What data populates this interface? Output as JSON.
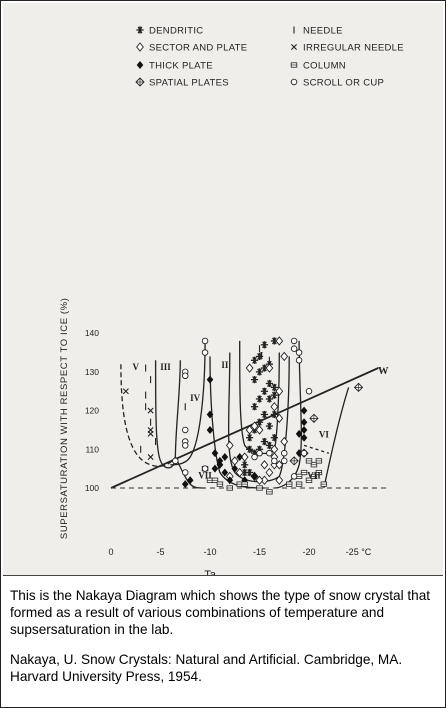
{
  "chart_data": {
    "type": "scatter",
    "xlabel": "Ta",
    "ylabel": "SUPERSATURATION WITH RESPECT TO ICE (%)",
    "xlim": [
      0,
      -25
    ],
    "ylim": [
      100,
      140
    ],
    "xticks": [
      {
        "value": 0,
        "label": "0"
      },
      {
        "value": -5,
        "label": "-5"
      },
      {
        "value": -10,
        "label": "-10"
      },
      {
        "value": -15,
        "label": "-15"
      },
      {
        "value": -20,
        "label": "-20"
      },
      {
        "value": -25,
        "label": "-25 °C"
      }
    ],
    "yticks": [
      100,
      110,
      120,
      130,
      140
    ],
    "grid": false,
    "legend_placement": "top",
    "legend": [
      {
        "symbol": "✱",
        "label": "DENDRITIC"
      },
      {
        "symbol": "I",
        "label": "NEEDLE"
      },
      {
        "symbol": "◇",
        "label": "SECTOR AND PLATE"
      },
      {
        "symbol": "×",
        "label": "IRREGULAR NEEDLE"
      },
      {
        "symbol": "◆",
        "label": "THICK PLATE"
      },
      {
        "symbol": "⊞",
        "label": "COLUMN"
      },
      {
        "symbol": "⊕",
        "label": "SPATIAL PLATES"
      },
      {
        "symbol": "o",
        "label": "SCROLL OR CUP"
      }
    ],
    "region_labels": [
      "I",
      "II",
      "III",
      "IV",
      "V",
      "VI",
      "VII",
      "VII",
      "W"
    ],
    "water_saturation_line": {
      "label": "W",
      "x": [
        0,
        -27
      ],
      "y": [
        100,
        131
      ]
    },
    "series": [
      {
        "symbol": "✱",
        "label": "DENDRITIC",
        "points": [
          [
            -14,
            104
          ],
          [
            -13.5,
            106
          ],
          [
            -14.5,
            109
          ],
          [
            -15,
            110
          ],
          [
            -15.5,
            112
          ],
          [
            -16,
            111
          ],
          [
            -16.5,
            113
          ],
          [
            -14,
            113
          ],
          [
            -14.5,
            115
          ],
          [
            -15,
            117
          ],
          [
            -16,
            116
          ],
          [
            -15.5,
            119
          ],
          [
            -16.5,
            119
          ],
          [
            -14.5,
            121
          ],
          [
            -15,
            123
          ],
          [
            -16,
            123
          ],
          [
            -16.5,
            126
          ],
          [
            -14.5,
            128
          ],
          [
            -15,
            130
          ],
          [
            -15.5,
            131
          ],
          [
            -16,
            127
          ],
          [
            -16.5,
            124
          ],
          [
            -15.5,
            125
          ],
          [
            -16,
            132
          ],
          [
            -15,
            134
          ],
          [
            -16.5,
            138
          ],
          [
            -15.5,
            137
          ],
          [
            -14.5,
            133
          ],
          [
            -14,
            110
          ],
          [
            -13.5,
            104
          ]
        ]
      },
      {
        "symbol": "I",
        "label": "NEEDLE",
        "points": [
          [
            -3.5,
            131
          ],
          [
            -4,
            128
          ],
          [
            -3.5,
            124
          ],
          [
            -4,
            117
          ],
          [
            -4.5,
            112
          ],
          [
            -3,
            110
          ],
          [
            -3.5,
            121
          ],
          [
            -16,
            133
          ],
          [
            -15,
            136
          ],
          [
            -7.5,
            121
          ]
        ]
      },
      {
        "symbol": "◇",
        "label": "SECTOR AND PLATE",
        "points": [
          [
            -12,
            103
          ],
          [
            -13,
            104
          ],
          [
            -14.5,
            103
          ],
          [
            -15.5,
            102
          ],
          [
            -16,
            104
          ],
          [
            -16.5,
            106
          ],
          [
            -17,
            106
          ],
          [
            -12.5,
            107
          ],
          [
            -13.5,
            108
          ],
          [
            -16.5,
            110
          ],
          [
            -17.5,
            112
          ],
          [
            -12,
            111
          ],
          [
            -14,
            115
          ],
          [
            -15,
            115
          ],
          [
            -14.5,
            116
          ],
          [
            -17,
            118
          ],
          [
            -16.5,
            121
          ],
          [
            -17,
            125
          ],
          [
            -16,
            131
          ],
          [
            -17.5,
            134
          ],
          [
            -17,
            138
          ],
          [
            -14,
            131
          ],
          [
            -15,
            102
          ],
          [
            -15.5,
            106
          ],
          [
            -16.5,
            108
          ],
          [
            -17,
            102
          ]
        ]
      },
      {
        "symbol": "×",
        "label": "IRREGULAR NEEDLE",
        "points": [
          [
            -1.5,
            125
          ],
          [
            -4,
            120
          ],
          [
            -4,
            115
          ],
          [
            -4,
            114
          ],
          [
            -4,
            108
          ]
        ]
      },
      {
        "symbol": "◆",
        "label": "THICK PLATE",
        "points": [
          [
            -10,
            128
          ],
          [
            -10,
            119
          ],
          [
            -10,
            115
          ],
          [
            -10.5,
            109
          ],
          [
            -11,
            107
          ],
          [
            -11,
            106
          ],
          [
            -10.5,
            105
          ],
          [
            -11.5,
            104
          ],
          [
            -12,
            102
          ],
          [
            -12.5,
            105
          ],
          [
            -13.5,
            102
          ],
          [
            -14.5,
            103
          ],
          [
            -19,
            109
          ],
          [
            -19.5,
            113
          ],
          [
            -19.5,
            115
          ],
          [
            -19,
            114
          ],
          [
            -19.5,
            120
          ],
          [
            -19.5,
            117
          ],
          [
            -7.5,
            101
          ],
          [
            -8,
            102
          ],
          [
            -11.5,
            108
          ],
          [
            -11,
            106
          ],
          [
            -13,
            108
          ]
        ]
      },
      {
        "symbol": "⊞",
        "label": "COLUMN",
        "points": [
          [
            -9.5,
            105
          ],
          [
            -10,
            102
          ],
          [
            -10.5,
            102
          ],
          [
            -11,
            101
          ],
          [
            -12,
            100
          ],
          [
            -13,
            101
          ],
          [
            -13.5,
            101
          ],
          [
            -15,
            100
          ],
          [
            -16,
            99
          ],
          [
            -18,
            101
          ],
          [
            -19,
            101
          ],
          [
            -20,
            102
          ],
          [
            -19.5,
            104
          ],
          [
            -20.5,
            103
          ],
          [
            -21,
            104
          ],
          [
            -20.5,
            106
          ],
          [
            -21,
            107
          ],
          [
            -20,
            107
          ],
          [
            -21.5,
            101
          ],
          [
            -19,
            103
          ]
        ]
      },
      {
        "symbol": "⊕",
        "label": "SPATIAL PLATES",
        "points": [
          [
            -20.5,
            118
          ],
          [
            -25,
            126
          ],
          [
            -18.5,
            107
          ],
          [
            -19.5,
            109
          ]
        ]
      },
      {
        "symbol": "o",
        "label": "SCROLL OR CUP",
        "points": [
          [
            -9.5,
            138
          ],
          [
            -9.5,
            135
          ],
          [
            -7.5,
            130
          ],
          [
            -7.5,
            129
          ],
          [
            -7.5,
            115
          ],
          [
            -7.5,
            112
          ],
          [
            -7.5,
            111
          ],
          [
            -6.5,
            107
          ],
          [
            -7.5,
            104
          ],
          [
            -9.5,
            105
          ],
          [
            -14.5,
            108
          ],
          [
            -15,
            109
          ],
          [
            -16,
            109
          ],
          [
            -16.5,
            107
          ],
          [
            -17.5,
            107
          ],
          [
            -17.5,
            109
          ],
          [
            -18.5,
            103
          ],
          [
            -19.5,
            109
          ],
          [
            -20,
            125
          ],
          [
            -19,
            133
          ],
          [
            -18.5,
            136
          ],
          [
            -18.5,
            138
          ],
          [
            -19,
            135
          ]
        ]
      }
    ]
  },
  "caption": {
    "description": "This is the Nakaya Diagram which shows the type of snow crystal that formed as a result of various combinations of temperature and supsersaturation in the lab.",
    "reference": "Nakaya, U. Snow Crystals: Natural and Artificial. Cambridge, MA.  Harvard University Press, 1954."
  }
}
